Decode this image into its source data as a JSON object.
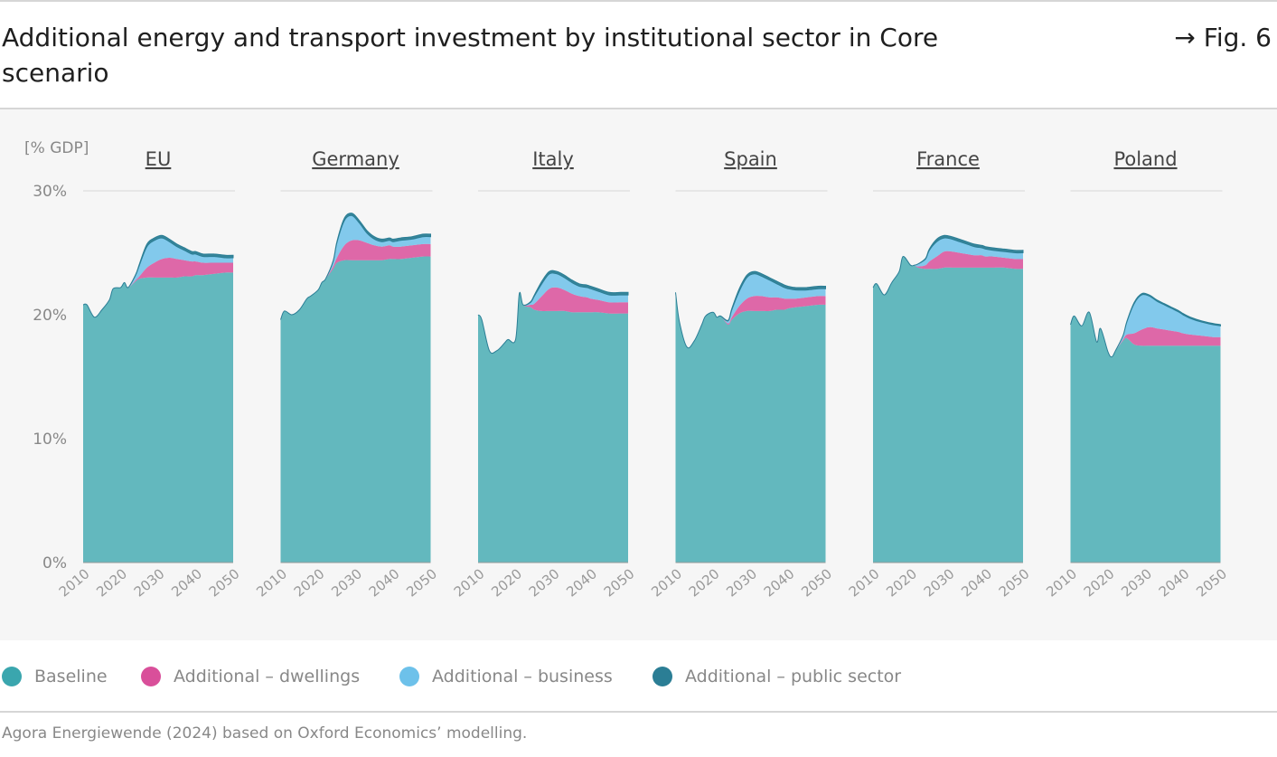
{
  "title": "Additional energy and transport investment by institutional sector in Core scenario",
  "figure_ref": "→ Fig. 6",
  "source": "Agora Energiewende (2024) based on Oxford Economics’ modelling.",
  "legend": [
    {
      "label": "Baseline",
      "color": "#3aa6ae"
    },
    {
      "label": "Additional – dwellings",
      "color": "#d94f9a"
    },
    {
      "label": "Additional – business",
      "color": "#6dc1ea"
    },
    {
      "label": "Additional – public sector",
      "color": "#2b7e95"
    }
  ],
  "chart_data": {
    "type": "area",
    "stacked": true,
    "ylabel": "[% GDP]",
    "ylim": [
      0,
      30
    ],
    "yticks": [
      "0%",
      "10%",
      "20%",
      "30%"
    ],
    "xticks": [
      "2010",
      "2020",
      "2030",
      "2040",
      "2050"
    ],
    "xlim": [
      2010,
      2050
    ],
    "panels": [
      {
        "name": "EU",
        "x": [
          2010,
          2011,
          2013,
          2015,
          2017,
          2018,
          2020,
          2021,
          2022,
          2024,
          2025,
          2027,
          2029,
          2031,
          2033,
          2035,
          2037,
          2039,
          2040,
          2042,
          2045,
          2048,
          2050
        ],
        "series": [
          {
            "name": "Baseline",
            "values": [
              20.8,
              20.8,
              19.8,
              20.4,
              21.2,
              22.1,
              22.2,
              22.6,
              22.2,
              22.7,
              22.9,
              23.0,
              23.0,
              23.0,
              23.0,
              23.0,
              23.1,
              23.1,
              23.2,
              23.2,
              23.3,
              23.4,
              23.4
            ]
          },
          {
            "name": "Additional – dwellings",
            "values": [
              0,
              0,
              0,
              0,
              0,
              0,
              0,
              0,
              0,
              0.1,
              0.2,
              0.8,
              1.2,
              1.5,
              1.6,
              1.5,
              1.3,
              1.2,
              1.1,
              1.0,
              0.9,
              0.8,
              0.8
            ]
          },
          {
            "name": "Additional – business",
            "values": [
              0,
              0,
              0,
              0,
              0,
              0,
              0,
              0,
              0,
              0.4,
              0.9,
              1.7,
              1.8,
              1.7,
              1.3,
              1.0,
              0.8,
              0.6,
              0.6,
              0.5,
              0.5,
              0.4,
              0.4
            ]
          },
          {
            "name": "Additional – public sector",
            "values": [
              0,
              0,
              0,
              0,
              0,
              0,
              0,
              0,
              0,
              0.05,
              0.1,
              0.2,
              0.2,
              0.2,
              0.2,
              0.2,
              0.2,
              0.2,
              0.2,
              0.2,
              0.2,
              0.2,
              0.2
            ]
          }
        ]
      },
      {
        "name": "Germany",
        "x": [
          2010,
          2011,
          2013,
          2015,
          2017,
          2018,
          2020,
          2021,
          2022,
          2024,
          2025,
          2027,
          2029,
          2031,
          2033,
          2035,
          2037,
          2039,
          2040,
          2042,
          2045,
          2048,
          2050
        ],
        "series": [
          {
            "name": "Baseline",
            "values": [
              19.6,
              20.3,
              20.0,
              20.4,
              21.3,
              21.5,
              22.0,
              22.6,
              22.9,
              23.7,
              24.2,
              24.4,
              24.4,
              24.4,
              24.4,
              24.4,
              24.4,
              24.5,
              24.5,
              24.5,
              24.6,
              24.7,
              24.7
            ]
          },
          {
            "name": "Additional – dwellings",
            "values": [
              0,
              0,
              0,
              0,
              0,
              0,
              0,
              0,
              0,
              0.2,
              0.4,
              1.2,
              1.6,
              1.6,
              1.4,
              1.2,
              1.1,
              1.1,
              1.0,
              1.0,
              1.0,
              1.0,
              1.0
            ]
          },
          {
            "name": "Additional – business",
            "values": [
              0,
              0,
              0,
              0,
              0,
              0,
              0,
              0,
              0,
              0.4,
              1.2,
              2.0,
              2.0,
              1.4,
              0.8,
              0.5,
              0.4,
              0.4,
              0.4,
              0.5,
              0.5,
              0.6,
              0.6
            ]
          },
          {
            "name": "Additional – public sector",
            "values": [
              0,
              0,
              0,
              0,
              0,
              0,
              0,
              0,
              0,
              0.05,
              0.1,
              0.2,
              0.2,
              0.2,
              0.2,
              0.2,
              0.2,
              0.2,
              0.2,
              0.2,
              0.2,
              0.2,
              0.2
            ]
          }
        ]
      },
      {
        "name": "Italy",
        "x": [
          2010,
          2011,
          2013,
          2015,
          2017,
          2018,
          2020,
          2021,
          2022,
          2024,
          2025,
          2027,
          2029,
          2031,
          2033,
          2035,
          2037,
          2039,
          2040,
          2042,
          2045,
          2048,
          2050
        ],
        "series": [
          {
            "name": "Baseline",
            "values": [
              20.0,
              19.6,
              17.1,
              17.1,
              17.7,
              18.0,
              18.0,
              21.7,
              20.8,
              20.6,
              20.4,
              20.3,
              20.3,
              20.3,
              20.3,
              20.2,
              20.2,
              20.2,
              20.2,
              20.2,
              20.1,
              20.1,
              20.1
            ]
          },
          {
            "name": "Additional – dwellings",
            "values": [
              0,
              0,
              0,
              0,
              0,
              0,
              0,
              0,
              0,
              0.2,
              0.5,
              1.2,
              1.8,
              1.9,
              1.7,
              1.5,
              1.3,
              1.2,
              1.1,
              1.0,
              0.9,
              0.9,
              0.9
            ]
          },
          {
            "name": "Additional – business",
            "values": [
              0,
              0,
              0,
              0,
              0,
              0,
              0,
              0,
              0,
              0.2,
              0.6,
              1.0,
              1.2,
              1.1,
              1.0,
              0.9,
              0.8,
              0.8,
              0.8,
              0.7,
              0.6,
              0.6,
              0.6
            ]
          },
          {
            "name": "Additional – public sector",
            "values": [
              0,
              0,
              0,
              0,
              0,
              0,
              0,
              0,
              0,
              0.05,
              0.1,
              0.2,
              0.2,
              0.2,
              0.2,
              0.2,
              0.2,
              0.2,
              0.2,
              0.2,
              0.2,
              0.2,
              0.2
            ]
          }
        ]
      },
      {
        "name": "Spain",
        "x": [
          2010,
          2011,
          2013,
          2015,
          2017,
          2018,
          2020,
          2021,
          2022,
          2024,
          2025,
          2027,
          2029,
          2031,
          2033,
          2035,
          2037,
          2039,
          2040,
          2042,
          2045,
          2048,
          2050
        ],
        "series": [
          {
            "name": "Baseline",
            "values": [
              21.8,
              19.5,
              17.4,
              17.9,
              19.2,
              19.9,
              20.2,
              19.8,
              19.9,
              19.2,
              19.6,
              20.1,
              20.3,
              20.3,
              20.3,
              20.3,
              20.4,
              20.4,
              20.5,
              20.6,
              20.7,
              20.8,
              20.8
            ]
          },
          {
            "name": "Additional – dwellings",
            "values": [
              0,
              0,
              0,
              0,
              0,
              0,
              0,
              0,
              0,
              0.1,
              0.2,
              0.6,
              1.0,
              1.2,
              1.2,
              1.1,
              1.0,
              0.9,
              0.8,
              0.7,
              0.7,
              0.7,
              0.7
            ]
          },
          {
            "name": "Additional – business",
            "values": [
              0,
              0,
              0,
              0,
              0,
              0,
              0,
              0,
              0,
              0.2,
              0.6,
              1.2,
              1.7,
              1.8,
              1.6,
              1.4,
              1.1,
              0.9,
              0.8,
              0.7,
              0.6,
              0.6,
              0.6
            ]
          },
          {
            "name": "Additional – public sector",
            "values": [
              0,
              0,
              0,
              0,
              0,
              0,
              0,
              0,
              0,
              0.05,
              0.1,
              0.2,
              0.2,
              0.2,
              0.2,
              0.2,
              0.2,
              0.2,
              0.2,
              0.2,
              0.2,
              0.2,
              0.2
            ]
          }
        ]
      },
      {
        "name": "France",
        "x": [
          2010,
          2011,
          2013,
          2015,
          2017,
          2018,
          2020,
          2021,
          2022,
          2024,
          2025,
          2027,
          2029,
          2031,
          2033,
          2035,
          2037,
          2039,
          2040,
          2042,
          2045,
          2048,
          2050
        ],
        "series": [
          {
            "name": "Baseline",
            "values": [
              22.2,
              22.5,
              21.6,
              22.6,
              23.5,
              24.7,
              24.0,
              24.0,
              23.8,
              23.7,
              23.7,
              23.7,
              23.8,
              23.8,
              23.8,
              23.8,
              23.8,
              23.8,
              23.8,
              23.8,
              23.8,
              23.7,
              23.7
            ]
          },
          {
            "name": "Additional – dwellings",
            "values": [
              0,
              0,
              0,
              0,
              0,
              0,
              0,
              0,
              0.1,
              0.3,
              0.6,
              1.0,
              1.3,
              1.3,
              1.2,
              1.1,
              1.0,
              1.0,
              0.9,
              0.9,
              0.8,
              0.8,
              0.8
            ]
          },
          {
            "name": "Additional – business",
            "values": [
              0,
              0,
              0,
              0,
              0,
              0,
              0,
              0,
              0.2,
              0.5,
              0.9,
              1.2,
              1.1,
              1.0,
              0.9,
              0.8,
              0.7,
              0.6,
              0.6,
              0.5,
              0.5,
              0.5,
              0.5
            ]
          },
          {
            "name": "Additional – public sector",
            "values": [
              0,
              0,
              0,
              0,
              0,
              0,
              0,
              0,
              0,
              0.05,
              0.1,
              0.2,
              0.2,
              0.2,
              0.2,
              0.2,
              0.2,
              0.2,
              0.2,
              0.2,
              0.2,
              0.2,
              0.2
            ]
          }
        ]
      },
      {
        "name": "Poland",
        "x": [
          2010,
          2011,
          2013,
          2015,
          2017,
          2018,
          2020,
          2021,
          2022,
          2024,
          2025,
          2027,
          2029,
          2031,
          2033,
          2035,
          2037,
          2039,
          2040,
          2042,
          2045,
          2048,
          2050
        ],
        "series": [
          {
            "name": "Baseline",
            "values": [
              19.2,
              19.9,
              19.1,
              20.2,
              17.8,
              18.9,
              17.0,
              16.6,
              17.1,
              17.9,
              18.1,
              17.6,
              17.5,
              17.5,
              17.5,
              17.5,
              17.5,
              17.5,
              17.5,
              17.5,
              17.5,
              17.5,
              17.5
            ]
          },
          {
            "name": "Additional – dwellings",
            "values": [
              0,
              0,
              0,
              0,
              0,
              0,
              0,
              0,
              0,
              0.1,
              0.3,
              0.9,
              1.3,
              1.5,
              1.4,
              1.3,
              1.2,
              1.1,
              1.0,
              0.9,
              0.8,
              0.7,
              0.7
            ]
          },
          {
            "name": "Additional – business",
            "values": [
              0,
              0,
              0,
              0,
              0,
              0,
              0,
              0,
              0,
              0.3,
              1.0,
              2.4,
              2.8,
              2.5,
              2.2,
              2.0,
              1.8,
              1.6,
              1.5,
              1.3,
              1.1,
              1.0,
              0.9
            ]
          },
          {
            "name": "Additional – public sector",
            "values": [
              0,
              0,
              0,
              0,
              0,
              0,
              0,
              0,
              0,
              0.02,
              0.05,
              0.1,
              0.1,
              0.1,
              0.1,
              0.1,
              0.1,
              0.1,
              0.1,
              0.1,
              0.1,
              0.1,
              0.1
            ]
          }
        ]
      }
    ]
  }
}
